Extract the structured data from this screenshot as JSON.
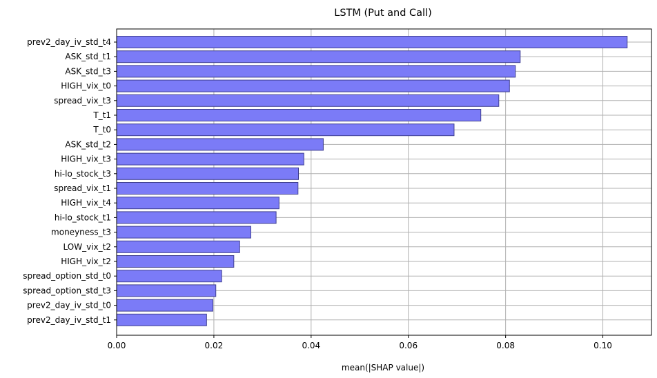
{
  "chart_data": {
    "type": "bar",
    "orientation": "horizontal",
    "title": "LSTM (Put and Call)",
    "xlabel": "mean(|SHAP value|)",
    "ylabel": "",
    "xlim": [
      0.0,
      0.11
    ],
    "xticks": [
      0.0,
      0.02,
      0.04,
      0.06,
      0.08,
      0.1
    ],
    "xtick_labels": [
      "0.00",
      "0.02",
      "0.04",
      "0.06",
      "0.08",
      "0.10"
    ],
    "grid": true,
    "bar_color": "#7b7bf7",
    "bar_edge_color": "#3f3f8f",
    "categories": [
      "prev2_day_iv_std_t4",
      "ASK_std_t1",
      "ASK_std_t3",
      "HIGH_vix_t0",
      "spread_vix_t3",
      "T_t1",
      "T_t0",
      "ASK_std_t2",
      "HIGH_vix_t3",
      "hi-lo_stock_t3",
      "spread_vix_t1",
      "HIGH_vix_t4",
      "hi-lo_stock_t1",
      "moneyness_t3",
      "LOW_vix_t2",
      "HIGH_vix_t2",
      "spread_option_std_t0",
      "spread_option_std_t3",
      "prev2_day_iv_std_t0",
      "prev2_day_iv_std_t1"
    ],
    "values": [
      0.105,
      0.083,
      0.082,
      0.0808,
      0.0786,
      0.0749,
      0.0694,
      0.0425,
      0.0385,
      0.0374,
      0.0373,
      0.0334,
      0.0328,
      0.0276,
      0.0253,
      0.0241,
      0.0216,
      0.0204,
      0.0198,
      0.0185
    ]
  }
}
